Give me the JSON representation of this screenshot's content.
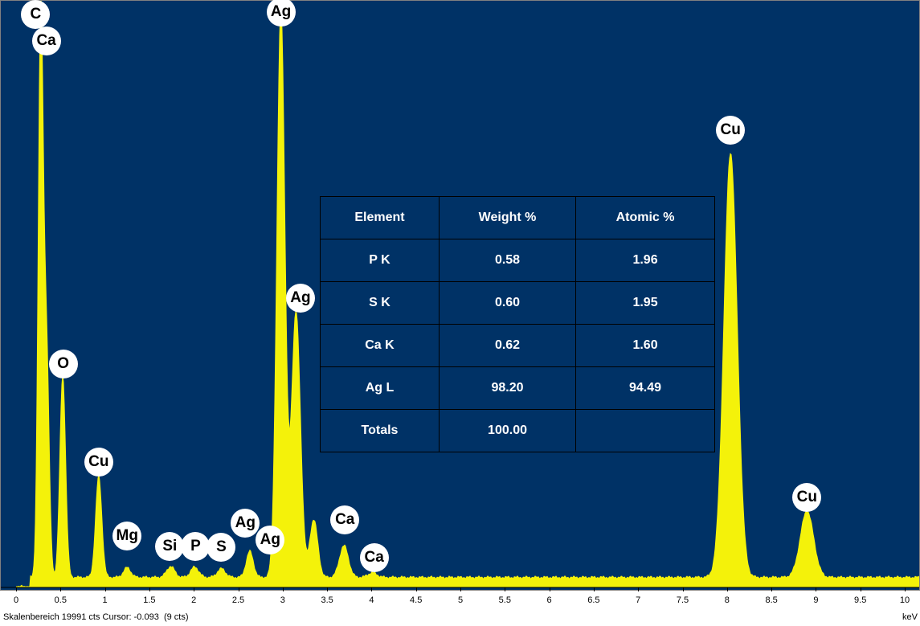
{
  "colors": {
    "background": "#003266",
    "spectrum": "#f4f20a",
    "label_bg": "#ffffff",
    "table_bg": "#003266"
  },
  "chart_data": {
    "type": "area",
    "xlabel": "keV",
    "xlim": [
      0,
      10.3
    ],
    "xticks": [
      "0",
      "0.5",
      "1",
      "1.5",
      "2",
      "2.5",
      "3",
      "3.5",
      "4",
      "4.5",
      "5",
      "5.5",
      "6",
      "6.5",
      "7",
      "7.5",
      "8",
      "8.5",
      "9",
      "9.5",
      "10"
    ],
    "xtick_values": [
      0,
      0.5,
      1,
      1.5,
      2,
      2.5,
      3,
      3.5,
      4,
      4.5,
      5,
      5.5,
      6,
      6.5,
      7,
      7.5,
      8,
      8.5,
      9,
      9.5,
      10
    ],
    "ylim": [
      0,
      100
    ],
    "baseline": 1.6,
    "peaks": [
      {
        "element": "C",
        "x": 0.277,
        "height": 96,
        "width": 0.028
      },
      {
        "element": "Ca",
        "x": 0.341,
        "height": 40,
        "width": 0.03
      },
      {
        "element": "O",
        "x": 0.525,
        "height": 35,
        "width": 0.032
      },
      {
        "element": "Cu",
        "x": 0.93,
        "height": 17.5,
        "width": 0.035
      },
      {
        "element": "Mg",
        "x": 1.25,
        "height": 1.7,
        "width": 0.04
      },
      {
        "element": "Si",
        "x": 1.74,
        "height": 1.9,
        "width": 0.045
      },
      {
        "element": "P",
        "x": 2.01,
        "height": 1.8,
        "width": 0.045
      },
      {
        "element": "S",
        "x": 2.31,
        "height": 1.5,
        "width": 0.045
      },
      {
        "element": "Ag",
        "x": 2.63,
        "height": 4.5,
        "width": 0.04
      },
      {
        "element": "Ag",
        "x": 2.98,
        "height": 98.5,
        "width": 0.045
      },
      {
        "element": "Ag",
        "x": 3.15,
        "height": 46,
        "width": 0.05
      },
      {
        "element": "Ag",
        "x": 3.35,
        "height": 10,
        "width": 0.045
      },
      {
        "element": "Ca",
        "x": 3.69,
        "height": 5.5,
        "width": 0.05
      },
      {
        "element": "Ca",
        "x": 4.01,
        "height": 0.8,
        "width": 0.05
      },
      {
        "element": "Cu",
        "x": 8.04,
        "height": 73.5,
        "width": 0.075
      },
      {
        "element": "Cu",
        "x": 8.9,
        "height": 11.5,
        "width": 0.075
      }
    ],
    "peak_labels": [
      {
        "text": "C",
        "x": 0.22,
        "y": 99
      },
      {
        "text": "Ca",
        "x": 0.34,
        "y": 94.5
      },
      {
        "text": "Ag",
        "x": 2.98,
        "y": 99.5
      },
      {
        "text": "Cu",
        "x": 8.04,
        "y": 79
      },
      {
        "text": "Ag",
        "x": 3.2,
        "y": 50
      },
      {
        "text": "O",
        "x": 0.53,
        "y": 38.5
      },
      {
        "text": "Cu",
        "x": 0.93,
        "y": 21.5
      },
      {
        "text": "Mg",
        "x": 1.25,
        "y": 8.8
      },
      {
        "text": "Si",
        "x": 1.73,
        "y": 7
      },
      {
        "text": "P",
        "x": 2.02,
        "y": 7
      },
      {
        "text": "S",
        "x": 2.31,
        "y": 6.8
      },
      {
        "text": "Ag",
        "x": 2.58,
        "y": 11
      },
      {
        "text": "Ag",
        "x": 2.86,
        "y": 8
      },
      {
        "text": "Ca",
        "x": 3.7,
        "y": 11.5
      },
      {
        "text": "Ca",
        "x": 4.03,
        "y": 5
      },
      {
        "text": "Cu",
        "x": 8.9,
        "y": 15.5
      }
    ]
  },
  "table": {
    "headers": [
      "Element",
      "Weight %",
      "Atomic %"
    ],
    "rows": [
      [
        "P K",
        "0.58",
        "1.96"
      ],
      [
        "S K",
        "0.60",
        "1.95"
      ],
      [
        "Ca K",
        "0.62",
        "1.60"
      ],
      [
        "Ag L",
        "98.20",
        "94.49"
      ],
      [
        "Totals",
        "100.00",
        ""
      ]
    ]
  },
  "status": {
    "text": "Skalenbereich 19991 cts Cursor: -0.093  (9 cts)"
  },
  "axis": {
    "unit": "keV"
  }
}
